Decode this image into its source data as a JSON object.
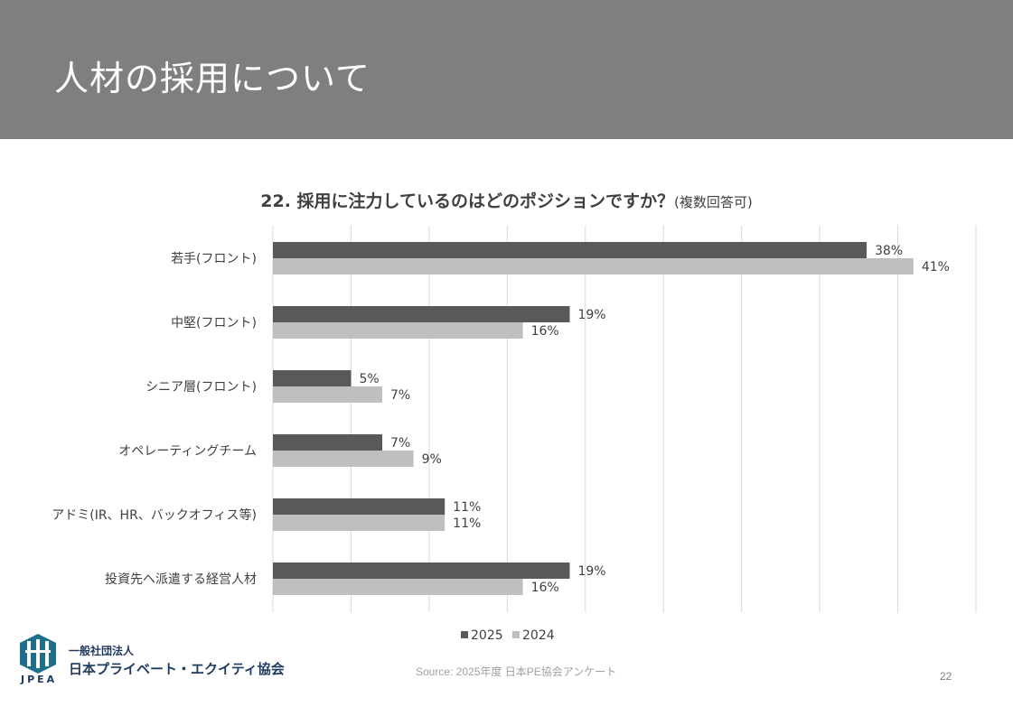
{
  "header": {
    "title": "人材の採用について"
  },
  "chart_data": {
    "type": "bar",
    "orientation": "horizontal",
    "title": "22. 採用に注力しているのはどのポジションですか？",
    "title_note": "(複数回答可)",
    "categories": [
      "若手(フロント)",
      "中堅(フロント)",
      "シニア層(フロント)",
      "オペレーティングチーム",
      "アドミ(IR、HR、バックオフィス等)",
      "投資先へ派遣する経営人材"
    ],
    "series": [
      {
        "name": "2025",
        "color": "#595959",
        "values": [
          38,
          19,
          5,
          7,
          11,
          19
        ],
        "labels": [
          "38%",
          "19%",
          "5%",
          "7%",
          "11%",
          "19%"
        ]
      },
      {
        "name": "2024",
        "color": "#bfbfbf",
        "values": [
          41,
          16,
          7,
          9,
          11,
          16
        ],
        "labels": [
          "41%",
          "16%",
          "7%",
          "9%",
          "11%",
          "16%"
        ]
      }
    ],
    "xlim": [
      0,
      45
    ],
    "grid": true,
    "legend": "bottom-center"
  },
  "footer": {
    "source": "Source: 2025年度 日本PE協会アンケート",
    "page": "22",
    "logo_line1": "一般社団法人",
    "logo_line2": "日本プライベート・エクイティ協会",
    "logo_abbr": "JPEA"
  }
}
